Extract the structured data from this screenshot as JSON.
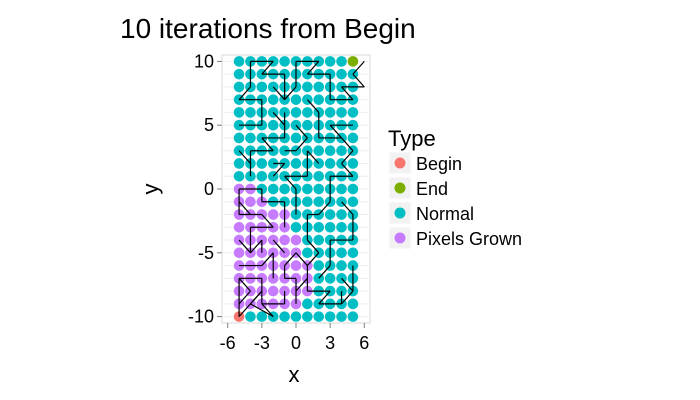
{
  "chart_data": {
    "type": "scatter",
    "title": "10 iterations from Begin",
    "xlabel": "x",
    "ylabel": "y",
    "xlim": [
      -6.5,
      6.5
    ],
    "ylim": [
      -10.5,
      10.5
    ],
    "x_ticks": [
      -6,
      -3,
      0,
      3,
      6
    ],
    "y_ticks": [
      -10,
      -5,
      0,
      5,
      10
    ],
    "x_tick_labels": [
      "-6",
      "-3",
      "0",
      "3",
      "6"
    ],
    "y_tick_labels": [
      "-10",
      "-5",
      "0",
      "5",
      "10"
    ],
    "grid": true,
    "grid_x": [
      -5,
      -4,
      -3,
      -2,
      -1,
      0,
      1,
      2,
      3,
      4,
      5
    ],
    "grid_y": [
      -10,
      -9,
      -8,
      -7,
      -6,
      -5,
      -4,
      -3,
      -2,
      -1,
      0,
      1,
      2,
      3,
      4,
      5,
      6,
      7,
      8,
      9,
      10
    ],
    "legend": {
      "title": "Type",
      "placement": "right",
      "entries": [
        {
          "label": "Begin",
          "color": "#F8766D"
        },
        {
          "label": "End",
          "color": "#7CAE00"
        },
        {
          "label": "Normal",
          "color": "#00BFC4"
        },
        {
          "label": "Pixels Grown",
          "color": "#C77CFF"
        }
      ]
    },
    "series": [
      {
        "name": "Begin",
        "color": "#F8766D",
        "points": [
          [
            -5,
            -10
          ]
        ]
      },
      {
        "name": "End",
        "color": "#7CAE00",
        "points": [
          [
            5,
            10
          ]
        ]
      },
      {
        "name": "Normal",
        "color": "#00BFC4",
        "x_range": [
          -5,
          5
        ],
        "y_range": [
          -10,
          10
        ],
        "note_fill": "all remaining grid points"
      },
      {
        "name": "Pixels Grown",
        "color": "#C77CFF",
        "points": [
          [
            -5,
            -9
          ],
          [
            -4,
            -9
          ],
          [
            -3,
            -9
          ],
          [
            -2,
            -9
          ],
          [
            -1,
            -9
          ],
          [
            0,
            -9
          ],
          [
            -5,
            -8
          ],
          [
            -4,
            -8
          ],
          [
            -3,
            -8
          ],
          [
            -2,
            -8
          ],
          [
            -1,
            -8
          ],
          [
            0,
            -8
          ],
          [
            1,
            -8
          ],
          [
            -5,
            -7
          ],
          [
            -4,
            -7
          ],
          [
            -3,
            -7
          ],
          [
            -2,
            -7
          ],
          [
            -1,
            -7
          ],
          [
            0,
            -7
          ],
          [
            1,
            -7
          ],
          [
            -5,
            -6
          ],
          [
            -4,
            -6
          ],
          [
            -3,
            -6
          ],
          [
            -2,
            -6
          ],
          [
            -1,
            -6
          ],
          [
            0,
            -6
          ],
          [
            1,
            -6
          ],
          [
            -5,
            -5
          ],
          [
            -4,
            -5
          ],
          [
            -3,
            -5
          ],
          [
            -2,
            -5
          ],
          [
            -1,
            -5
          ],
          [
            0,
            -5
          ],
          [
            -5,
            -4
          ],
          [
            -4,
            -4
          ],
          [
            -3,
            -4
          ],
          [
            -2,
            -4
          ],
          [
            -1,
            -4
          ],
          [
            0,
            -4
          ],
          [
            -5,
            -3
          ],
          [
            -4,
            -3
          ],
          [
            -3,
            -3
          ],
          [
            -2,
            -3
          ],
          [
            -1,
            -3
          ],
          [
            -5,
            -2
          ],
          [
            -4,
            -2
          ],
          [
            -3,
            -2
          ],
          [
            -2,
            -2
          ],
          [
            -1,
            -2
          ],
          [
            -5,
            -1
          ],
          [
            -4,
            -1
          ],
          [
            -3,
            -1
          ],
          [
            -5,
            0
          ],
          [
            -4,
            0
          ]
        ]
      }
    ],
    "path_segments": [
      [
        [
          -5,
          -10
        ],
        [
          -5,
          -7
        ]
      ],
      [
        [
          -5,
          -7
        ],
        [
          -3,
          -7
        ]
      ],
      [
        [
          -3,
          -7
        ],
        [
          -3,
          -9
        ]
      ],
      [
        [
          -3,
          -9
        ],
        [
          -1,
          -9
        ]
      ],
      [
        [
          -1,
          -9
        ],
        [
          -1,
          -8
        ]
      ],
      [
        [
          -5,
          -10
        ],
        [
          -3,
          -8
        ]
      ],
      [
        [
          -3,
          -8
        ],
        [
          -4,
          -9
        ]
      ],
      [
        [
          -4,
          -9
        ],
        [
          -2,
          -10
        ]
      ],
      [
        [
          -2,
          -10
        ],
        [
          -3,
          -9
        ]
      ],
      [
        [
          -5,
          -9
        ],
        [
          -4,
          -8
        ]
      ],
      [
        [
          -4,
          -8
        ],
        [
          -5,
          -7
        ]
      ],
      [
        [
          -5,
          -6
        ],
        [
          -3,
          -6
        ]
      ],
      [
        [
          -3,
          -6
        ],
        [
          -2,
          -5
        ]
      ],
      [
        [
          -2,
          -5
        ],
        [
          -2,
          -7
        ]
      ],
      [
        [
          -4,
          -5
        ],
        [
          -4,
          -3
        ]
      ],
      [
        [
          -4,
          -3
        ],
        [
          -2,
          -3
        ]
      ],
      [
        [
          -2,
          -3
        ],
        [
          -3,
          -2
        ]
      ],
      [
        [
          -3,
          -2
        ],
        [
          -5,
          -2
        ]
      ],
      [
        [
          -5,
          -2
        ],
        [
          -5,
          0
        ]
      ],
      [
        [
          -5,
          0
        ],
        [
          -3,
          0
        ]
      ],
      [
        [
          -3,
          0
        ],
        [
          -3,
          -1
        ]
      ],
      [
        [
          -3,
          -1
        ],
        [
          -1,
          -1
        ]
      ],
      [
        [
          -1,
          -1
        ],
        [
          -1,
          -3
        ]
      ],
      [
        [
          -5,
          -4
        ],
        [
          -4,
          -5
        ]
      ],
      [
        [
          -4,
          -5
        ],
        [
          -3,
          -4
        ]
      ],
      [
        [
          -3,
          -4
        ],
        [
          -3,
          -5
        ]
      ],
      [
        [
          -2,
          -4
        ],
        [
          -1,
          -5
        ]
      ],
      [
        [
          -1,
          -6
        ],
        [
          0,
          -5
        ]
      ],
      [
        [
          0,
          -5
        ],
        [
          1,
          -6
        ]
      ],
      [
        [
          1,
          -6
        ],
        [
          1,
          -8
        ]
      ],
      [
        [
          1,
          -8
        ],
        [
          3,
          -8
        ]
      ],
      [
        [
          3,
          -8
        ],
        [
          2,
          -9
        ]
      ],
      [
        [
          0,
          -9
        ],
        [
          0,
          -7
        ]
      ],
      [
        [
          0,
          -7
        ],
        [
          -1,
          -7
        ]
      ],
      [
        [
          -1,
          -6
        ],
        [
          -1,
          -7
        ]
      ],
      [
        [
          0,
          -8
        ],
        [
          1,
          -7
        ]
      ],
      [
        [
          2,
          -7
        ],
        [
          3,
          -6
        ]
      ],
      [
        [
          3,
          -6
        ],
        [
          3,
          -4
        ]
      ],
      [
        [
          3,
          -4
        ],
        [
          5,
          -4
        ]
      ],
      [
        [
          5,
          -4
        ],
        [
          5,
          -2
        ]
      ],
      [
        [
          5,
          -2
        ],
        [
          4,
          -1
        ]
      ],
      [
        [
          2,
          -9
        ],
        [
          4,
          -9
        ]
      ],
      [
        [
          4,
          -9
        ],
        [
          5,
          -8
        ]
      ],
      [
        [
          5,
          -8
        ],
        [
          5,
          -6
        ]
      ],
      [
        [
          4,
          -7
        ],
        [
          5,
          -8
        ]
      ],
      [
        [
          4,
          -8
        ],
        [
          4,
          -9
        ]
      ],
      [
        [
          1,
          -4
        ],
        [
          2,
          -5
        ]
      ],
      [
        [
          2,
          -5
        ],
        [
          1,
          -6
        ]
      ],
      [
        [
          1,
          -4
        ],
        [
          1,
          -2
        ]
      ],
      [
        [
          1,
          -2
        ],
        [
          2,
          -2
        ]
      ],
      [
        [
          2,
          -2
        ],
        [
          3,
          -1
        ]
      ],
      [
        [
          3,
          -1
        ],
        [
          3,
          1
        ]
      ],
      [
        [
          3,
          1
        ],
        [
          5,
          1
        ]
      ],
      [
        [
          5,
          1
        ],
        [
          4,
          2
        ]
      ],
      [
        [
          4,
          2
        ],
        [
          5,
          3
        ]
      ],
      [
        [
          5,
          3
        ],
        [
          4,
          4
        ]
      ],
      [
        [
          0,
          -2
        ],
        [
          0,
          0
        ]
      ],
      [
        [
          0,
          0
        ],
        [
          -1,
          1
        ]
      ],
      [
        [
          -1,
          1
        ],
        [
          1,
          1
        ]
      ],
      [
        [
          1,
          1
        ],
        [
          1,
          3
        ]
      ],
      [
        [
          1,
          3
        ],
        [
          2,
          2
        ]
      ],
      [
        [
          -4,
          1
        ],
        [
          -4,
          3
        ]
      ],
      [
        [
          -4,
          3
        ],
        [
          -2,
          3
        ]
      ],
      [
        [
          -2,
          3
        ],
        [
          -3,
          4
        ]
      ],
      [
        [
          -3,
          4
        ],
        [
          -1,
          4
        ]
      ],
      [
        [
          -1,
          4
        ],
        [
          -1,
          6
        ]
      ],
      [
        [
          -5,
          5
        ],
        [
          -3,
          5
        ]
      ],
      [
        [
          -3,
          5
        ],
        [
          -3,
          7
        ]
      ],
      [
        [
          -3,
          7
        ],
        [
          -5,
          7
        ]
      ],
      [
        [
          -5,
          7
        ],
        [
          -4,
          8
        ]
      ],
      [
        [
          -4,
          8
        ],
        [
          -4,
          10
        ]
      ],
      [
        [
          -4,
          10
        ],
        [
          -2,
          10
        ]
      ],
      [
        [
          -2,
          10
        ],
        [
          -3,
          9
        ]
      ],
      [
        [
          -3,
          9
        ],
        [
          -1,
          9
        ]
      ],
      [
        [
          -1,
          9
        ],
        [
          -1,
          7
        ]
      ],
      [
        [
          -1,
          7
        ],
        [
          0,
          8
        ]
      ],
      [
        [
          0,
          8
        ],
        [
          0,
          10
        ]
      ],
      [
        [
          0,
          10
        ],
        [
          2,
          10
        ]
      ],
      [
        [
          2,
          10
        ],
        [
          1,
          9
        ]
      ],
      [
        [
          1,
          9
        ],
        [
          3,
          9
        ]
      ],
      [
        [
          3,
          9
        ],
        [
          3,
          7
        ]
      ],
      [
        [
          3,
          7
        ],
        [
          5,
          7
        ]
      ],
      [
        [
          5,
          7
        ],
        [
          4,
          8
        ]
      ],
      [
        [
          4,
          8
        ],
        [
          6,
          8
        ]
      ],
      [
        [
          6,
          8
        ],
        [
          5,
          9
        ]
      ],
      [
        [
          5,
          9
        ],
        [
          6,
          10
        ]
      ],
      [
        [
          1,
          7
        ],
        [
          2,
          6
        ]
      ],
      [
        [
          2,
          6
        ],
        [
          2,
          4
        ]
      ],
      [
        [
          2,
          4
        ],
        [
          4,
          4
        ]
      ],
      [
        [
          4,
          4
        ],
        [
          3,
          5
        ]
      ],
      [
        [
          3,
          5
        ],
        [
          5,
          5
        ]
      ],
      [
        [
          -2,
          1
        ],
        [
          -1,
          2
        ]
      ],
      [
        [
          -1,
          2
        ],
        [
          -2,
          2
        ]
      ],
      [
        [
          -5,
          3
        ],
        [
          -4,
          2
        ]
      ],
      [
        [
          -5,
          -1
        ],
        [
          -4,
          -2
        ]
      ],
      [
        [
          0,
          5
        ],
        [
          1,
          4
        ]
      ],
      [
        [
          1,
          4
        ],
        [
          0,
          3
        ]
      ],
      [
        [
          0,
          3
        ],
        [
          -1,
          3
        ]
      ],
      [
        [
          -2,
          6
        ],
        [
          -1,
          5
        ]
      ],
      [
        [
          -2,
          8
        ],
        [
          -1,
          7
        ]
      ]
    ]
  }
}
